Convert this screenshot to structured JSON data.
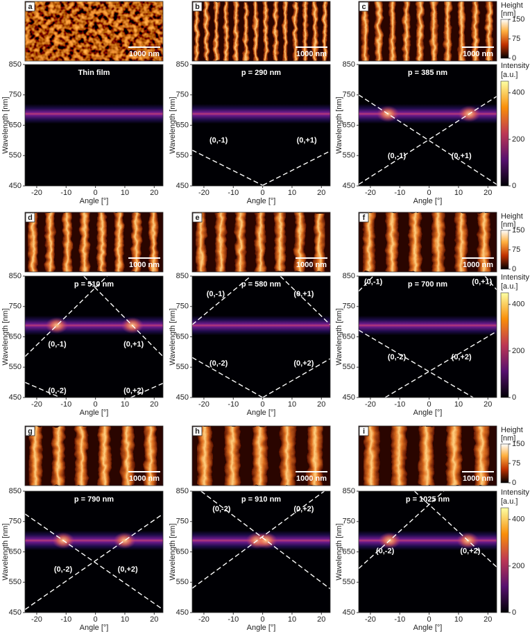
{
  "chart_data": [
    {
      "type": "heatmap",
      "panel": "a",
      "scale_bar": "1000 nm",
      "title": "Thin film",
      "xlabel": "Angle [°]",
      "ylabel": "Wavelength [nm]",
      "xlim": [
        -24,
        23
      ],
      "ylim": [
        450,
        850
      ],
      "xticks": [
        -20,
        -10,
        0,
        10,
        20
      ],
      "yticks": [
        450,
        550,
        650,
        750,
        850
      ],
      "band": [
        655,
        720
      ],
      "series": [],
      "annotations": []
    },
    {
      "type": "heatmap",
      "panel": "b",
      "scale_bar": "1000 nm",
      "title": "p = 290 nm",
      "xlabel": "Angle [°]",
      "ylabel": "Wavelength [nm]",
      "xlim": [
        -24,
        23
      ],
      "ylim": [
        450,
        850
      ],
      "xticks": [
        -20,
        -10,
        0,
        10,
        20
      ],
      "yticks": [
        450,
        550,
        650,
        750,
        850
      ],
      "band": [
        655,
        720
      ],
      "series": [
        {
          "color": "#ffffff",
          "x": [
            -24,
            0
          ],
          "values": [
            568,
            452
          ]
        },
        {
          "color": "#ffffff",
          "x": [
            0,
            23
          ],
          "values": [
            452,
            565
          ]
        }
      ],
      "annotations": [
        {
          "text": "(0,-1)",
          "x": -15,
          "y": 600
        },
        {
          "text": "(0,+1)",
          "x": 15,
          "y": 600
        }
      ]
    },
    {
      "type": "heatmap",
      "panel": "c",
      "scale_bar": "1000 nm",
      "title": "p = 385 nm",
      "xlabel": "Angle [°]",
      "ylabel": "Wavelength [nm]",
      "xlim": [
        -24,
        23
      ],
      "ylim": [
        450,
        850
      ],
      "xticks": [
        -20,
        -10,
        0,
        10,
        20
      ],
      "yticks": [
        450,
        550,
        650,
        750,
        850
      ],
      "band": [
        655,
        720
      ],
      "series": [
        {
          "color": "#ffffff",
          "x": [
            -24,
            23
          ],
          "values": [
            750,
            455
          ]
        },
        {
          "color": "#ffffff",
          "x": [
            -24,
            23
          ],
          "values": [
            455,
            745
          ]
        }
      ],
      "annotations": [
        {
          "text": "(0,-1)",
          "x": -11,
          "y": 548
        },
        {
          "text": "(0,+1)",
          "x": 11,
          "y": 548
        }
      ]
    },
    {
      "type": "heatmap",
      "panel": "d",
      "scale_bar": "1000 nm",
      "title": "p =  510 nm",
      "xlabel": "Angle [°]",
      "ylabel": "Wavelength [nm]",
      "xlim": [
        -24,
        23
      ],
      "ylim": [
        450,
        850
      ],
      "xticks": [
        -20,
        -10,
        0,
        10,
        20
      ],
      "yticks": [
        450,
        550,
        650,
        750,
        850
      ],
      "band": [
        655,
        720
      ],
      "series": [
        {
          "color": "#ffffff",
          "x": [
            -24,
            4
          ],
          "values": [
            585,
            850
          ]
        },
        {
          "color": "#ffffff",
          "x": [
            -4,
            23
          ],
          "values": [
            850,
            585
          ]
        },
        {
          "color": "#ffffff",
          "x": [
            -24,
            -12
          ],
          "values": [
            500,
            450
          ]
        },
        {
          "color": "#ffffff",
          "x": [
            12,
            23
          ],
          "values": [
            450,
            497
          ]
        }
      ],
      "annotations": [
        {
          "text": "(0,-1)",
          "x": -13,
          "y": 625
        },
        {
          "text": "(0,+1)",
          "x": 13,
          "y": 625
        },
        {
          "text": "(0,-2)",
          "x": -13,
          "y": 472
        },
        {
          "text": "(0,+2)",
          "x": 13,
          "y": 472
        }
      ]
    },
    {
      "type": "heatmap",
      "panel": "e",
      "scale_bar": "1000 nm",
      "title": "p = 580 nm",
      "xlabel": "Angle [°]",
      "ylabel": "Wavelength [nm]",
      "xlim": [
        -24,
        23
      ],
      "ylim": [
        450,
        850
      ],
      "xticks": [
        -20,
        -10,
        0,
        10,
        20
      ],
      "yticks": [
        450,
        550,
        650,
        750,
        850
      ],
      "band": [
        655,
        720
      ],
      "series": [
        {
          "color": "#ffffff",
          "x": [
            -24,
            -4
          ],
          "values": [
            690,
            850
          ]
        },
        {
          "color": "#ffffff",
          "x": [
            6,
            23
          ],
          "values": [
            850,
            690
          ]
        },
        {
          "color": "#ffffff",
          "x": [
            -24,
            0
          ],
          "values": [
            582,
            450
          ]
        },
        {
          "color": "#ffffff",
          "x": [
            0,
            23
          ],
          "values": [
            450,
            578
          ]
        }
      ],
      "annotations": [
        {
          "text": "(0,-1)",
          "x": -16,
          "y": 790
        },
        {
          "text": "(0,+1)",
          "x": 14,
          "y": 790
        },
        {
          "text": "(0,-2)",
          "x": -15,
          "y": 562
        },
        {
          "text": "(0,+2)",
          "x": 14,
          "y": 562
        }
      ]
    },
    {
      "type": "heatmap",
      "panel": "f",
      "scale_bar": "1000 nm",
      "title": "p = 700 nm",
      "xlabel": "Angle [°]",
      "ylabel": "Wavelength [nm]",
      "xlim": [
        -24,
        23
      ],
      "ylim": [
        450,
        850
      ],
      "xticks": [
        -20,
        -10,
        0,
        10,
        20
      ],
      "yticks": [
        450,
        550,
        650,
        750,
        850
      ],
      "band": [
        655,
        720
      ],
      "series": [
        {
          "color": "#ffffff",
          "x": [
            -24,
            -19
          ],
          "values": [
            800,
            850
          ]
        },
        {
          "color": "#ffffff",
          "x": [
            19,
            23
          ],
          "values": [
            850,
            805
          ]
        },
        {
          "color": "#ffffff",
          "x": [
            -24,
            15
          ],
          "values": [
            672,
            450
          ]
        },
        {
          "color": "#ffffff",
          "x": [
            -15,
            23
          ],
          "values": [
            450,
            668
          ]
        }
      ],
      "annotations": [
        {
          "text": "(0,-1)",
          "x": -19,
          "y": 830
        },
        {
          "text": "(0,+1)",
          "x": 18,
          "y": 830
        },
        {
          "text": "(0,-2)",
          "x": -11,
          "y": 582
        },
        {
          "text": "(0,+2)",
          "x": 11,
          "y": 582
        }
      ]
    },
    {
      "type": "heatmap",
      "panel": "g",
      "scale_bar": "1000 nm",
      "title": "p = 790 nm",
      "xlabel": "Angle [°]",
      "ylabel": "Wavelength [nm]",
      "xlim": [
        -24,
        23
      ],
      "ylim": [
        450,
        850
      ],
      "xticks": [
        -20,
        -10,
        0,
        10,
        20
      ],
      "yticks": [
        450,
        550,
        650,
        750,
        850
      ],
      "band": [
        655,
        720
      ],
      "series": [
        {
          "color": "#ffffff",
          "x": [
            -24,
            23
          ],
          "values": [
            775,
            460
          ]
        },
        {
          "color": "#ffffff",
          "x": [
            -24,
            23
          ],
          "values": [
            460,
            775
          ]
        }
      ],
      "annotations": [
        {
          "text": "(0,-2)",
          "x": -11,
          "y": 592
        },
        {
          "text": "(0,+2)",
          "x": 11,
          "y": 592
        }
      ]
    },
    {
      "type": "heatmap",
      "panel": "h",
      "scale_bar": "1000 nm",
      "title": "p = 910 nm",
      "xlabel": "Angle [°]",
      "ylabel": "Wavelength [nm]",
      "xlim": [
        -24,
        23
      ],
      "ylim": [
        450,
        850
      ],
      "xticks": [
        -20,
        -10,
        0,
        10,
        20
      ],
      "yticks": [
        450,
        550,
        650,
        750,
        850
      ],
      "band": [
        655,
        720
      ],
      "series": [
        {
          "color": "#ffffff",
          "x": [
            -24,
            21
          ],
          "values": [
            530,
            850
          ]
        },
        {
          "color": "#ffffff",
          "x": [
            -21,
            23
          ],
          "values": [
            850,
            528
          ]
        }
      ],
      "annotations": [
        {
          "text": "(0,-2)",
          "x": -14,
          "y": 790
        },
        {
          "text": "(0,+2)",
          "x": 14,
          "y": 790
        }
      ]
    },
    {
      "type": "heatmap",
      "panel": "i",
      "scale_bar": "1000 nm",
      "title": "p = 1025 nm",
      "xlabel": "Angle [°]",
      "ylabel": "Wavelength [nm]",
      "xlim": [
        -24,
        23
      ],
      "ylim": [
        450,
        850
      ],
      "xticks": [
        -20,
        -10,
        0,
        10,
        20
      ],
      "yticks": [
        450,
        550,
        650,
        750,
        850
      ],
      "band": [
        655,
        720
      ],
      "series": [
        {
          "color": "#ffffff",
          "x": [
            -24,
            5
          ],
          "values": [
            595,
            850
          ]
        },
        {
          "color": "#ffffff",
          "x": [
            -5,
            23
          ],
          "values": [
            850,
            600
          ]
        }
      ],
      "annotations": [
        {
          "text": "(0,-2)",
          "x": -15,
          "y": 652
        },
        {
          "text": "(0,+2)",
          "x": 14,
          "y": 652
        }
      ]
    },
    {
      "type": "colorbar",
      "title": "Height",
      "unit": "[nm]",
      "colormap": "afmhot",
      "ylim": [
        0,
        150
      ],
      "yticks": [
        0,
        75,
        150
      ]
    },
    {
      "type": "colorbar",
      "title": "Intensity",
      "unit": "[a.u.]",
      "colormap": "inferno",
      "ylim": [
        0,
        450
      ],
      "yticks": [
        0,
        200,
        400
      ]
    },
    {
      "type": "colorbar",
      "title": "Height",
      "unit": "[nm]",
      "colormap": "afmhot",
      "ylim": [
        0,
        150
      ],
      "yticks": [
        0,
        75,
        150
      ]
    },
    {
      "type": "colorbar",
      "title": "Intensity",
      "unit": "[a.u.]",
      "colormap": "inferno",
      "ylim": [
        0,
        450
      ],
      "yticks": [
        0,
        200,
        400
      ]
    },
    {
      "type": "colorbar",
      "title": "Height",
      "unit": "[nm]",
      "colormap": "afmhot",
      "ylim": [
        0,
        150
      ],
      "yticks": [
        0,
        75,
        150
      ]
    },
    {
      "type": "colorbar",
      "title": "Intensity",
      "unit": "[a.u.]",
      "colormap": "inferno",
      "ylim": [
        0,
        450
      ],
      "yticks": [
        0,
        200,
        400
      ]
    }
  ]
}
